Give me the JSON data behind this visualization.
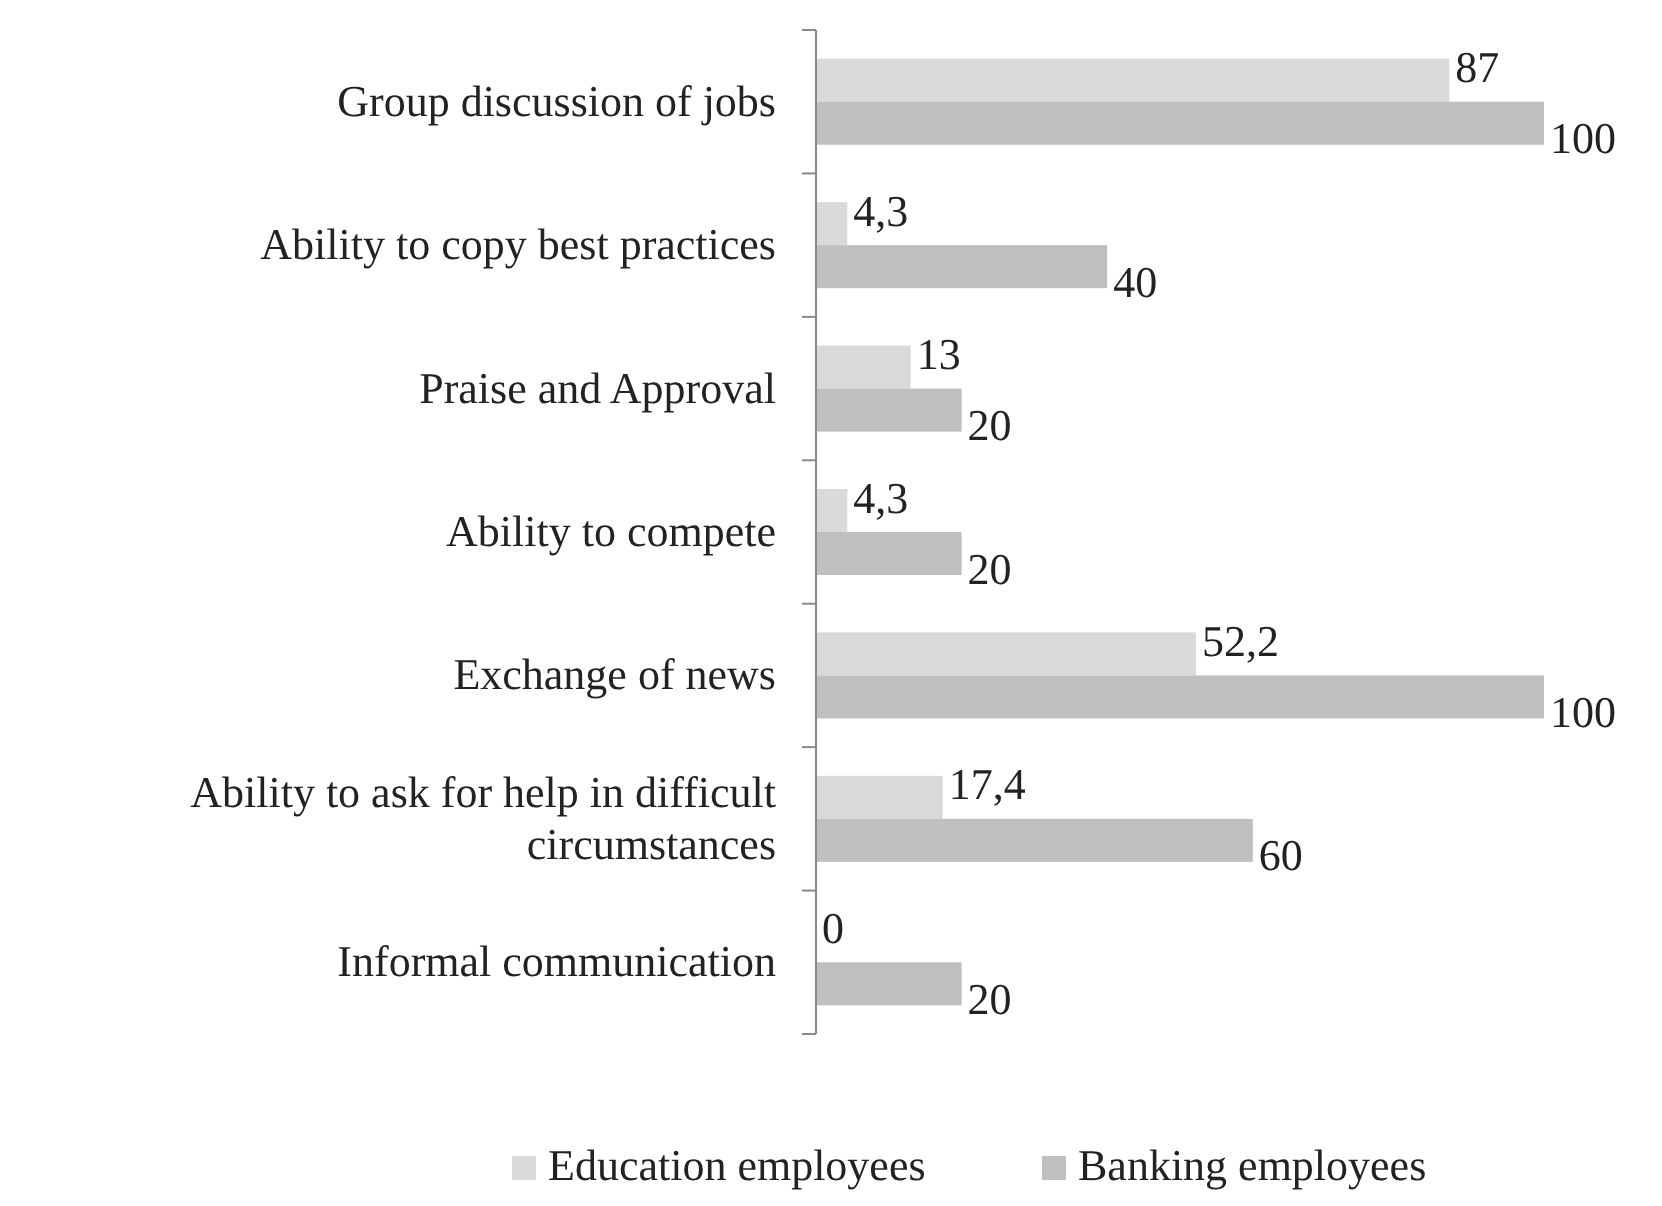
{
  "chart_data": {
    "type": "bar",
    "orientation": "horizontal",
    "categories": [
      "Group discussion of jobs",
      "Ability to copy best practices",
      "Praise and Approval",
      "Ability to compete",
      "Exchange of news",
      "Ability to ask for help in difficult circumstances",
      "Informal communication"
    ],
    "series": [
      {
        "name": "Education employees",
        "color": "#d9d9d9",
        "values": [
          87,
          4.3,
          13,
          4.3,
          52.2,
          17.4,
          0
        ],
        "value_labels": [
          "87",
          "4,3",
          "13",
          "4,3",
          "52,2",
          "17,4",
          "0"
        ]
      },
      {
        "name": "Banking employees",
        "color": "#bfbfbf",
        "values": [
          100,
          40,
          20,
          20,
          100,
          60,
          20
        ],
        "value_labels": [
          "100",
          "40",
          "20",
          "20",
          "100",
          "60",
          "20"
        ]
      }
    ],
    "legend": "bottom"
  }
}
